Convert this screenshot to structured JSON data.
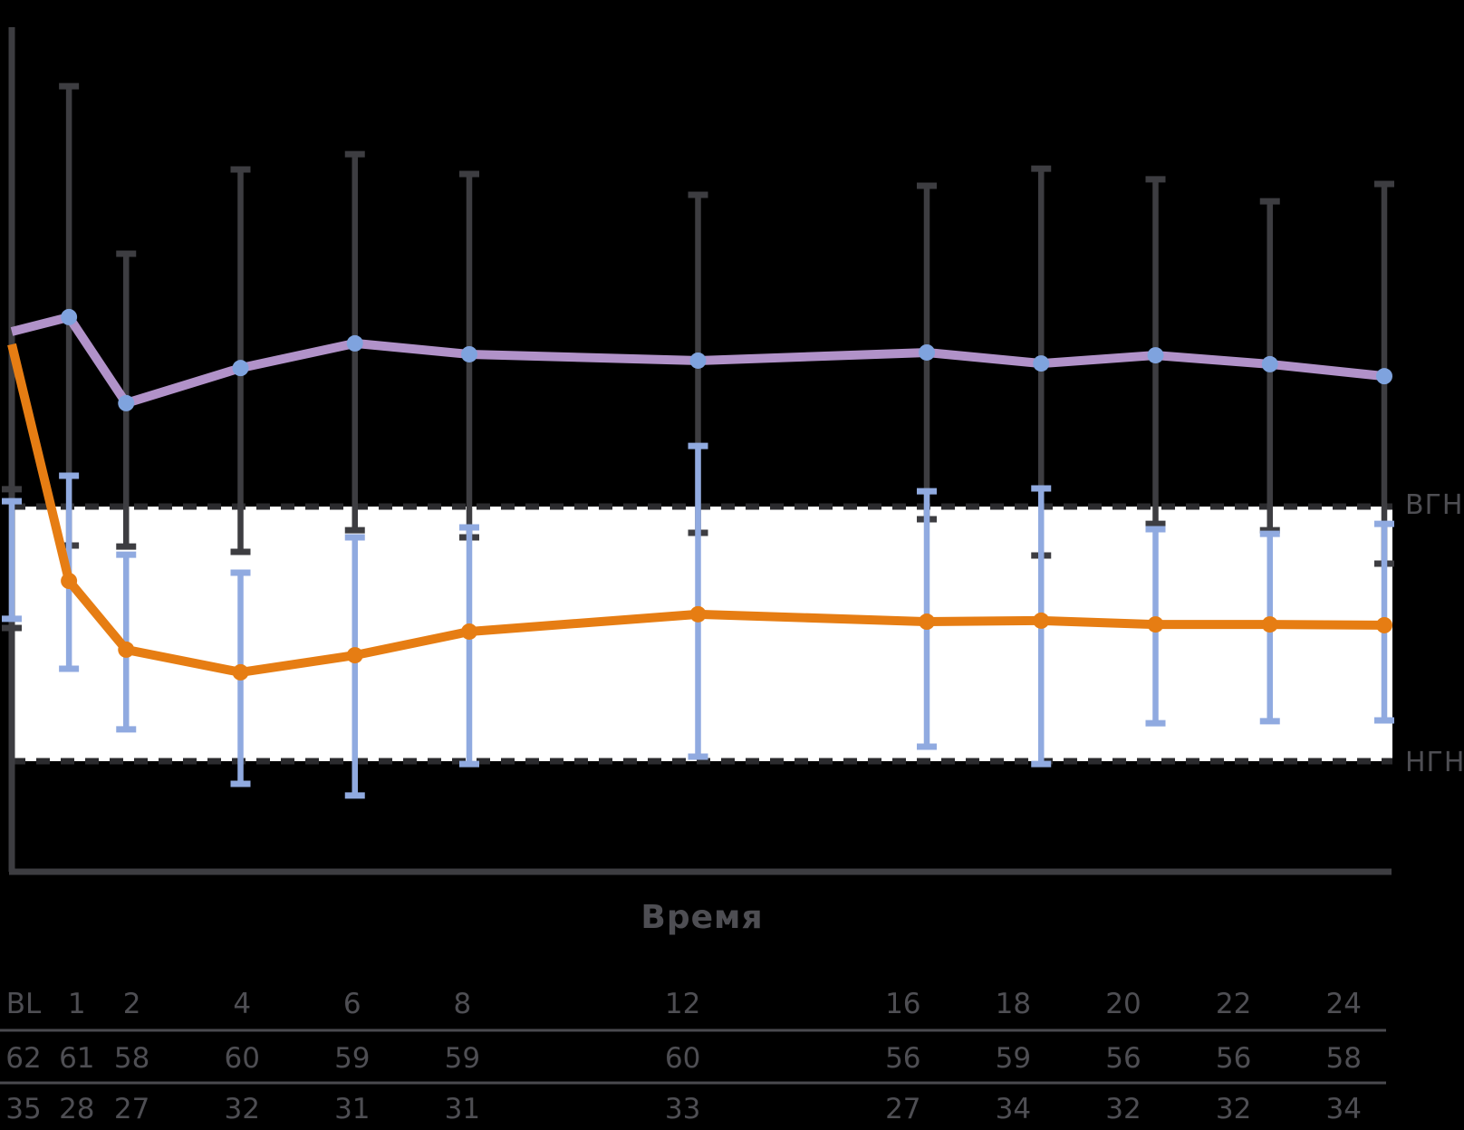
{
  "chart_data": {
    "type": "line",
    "title": "",
    "xlabel": "Время",
    "ylabel": "",
    "y_units": "normal-range fractions (НГН = 0, ВГН = 1)",
    "x_categories": [
      "BL",
      "1",
      "2",
      "4",
      "6",
      "8",
      "12",
      "16",
      "18",
      "20",
      "22",
      "24"
    ],
    "x_values": [
      0,
      1,
      2,
      4,
      6,
      8,
      12,
      16,
      18,
      20,
      22,
      24
    ],
    "band": {
      "upper_label": "ВГН",
      "lower_label": "НГН",
      "upper": 1.0,
      "lower": 0.0,
      "fill_color": "#ffffff",
      "dash_color": "#2b2b2e"
    },
    "grid": false,
    "legend": "none",
    "colors": {
      "background": "#000000",
      "axis": "#3d3d41",
      "text": "#4e4e53",
      "table_rule": "#4a4a4f"
    },
    "series": [
      {
        "name": "series_1",
        "line_color": "#b192c9",
        "marker_color": "#7fa3de",
        "error_color": "#3d3d41",
        "values": [
          1.687,
          1.744,
          1.406,
          1.544,
          1.641,
          1.598,
          1.573,
          1.605,
          1.562,
          1.594,
          1.559,
          1.512
        ],
        "err_top": [
          1.068,
          2.651,
          1.993,
          2.324,
          2.384,
          2.306,
          2.224,
          2.26,
          2.327,
          2.285,
          2.199,
          2.267
        ],
        "err_bottom": [
          0.523,
          0.847,
          0.843,
          0.822,
          0.907,
          0.879,
          0.897,
          0.95,
          0.808,
          0.932,
          0.907,
          0.776
        ],
        "n_row": [
          "62",
          "61",
          "58",
          "60",
          "59",
          "59",
          "60",
          "56",
          "59",
          "56",
          "56",
          "58"
        ]
      },
      {
        "name": "series_2",
        "line_color": "#e67d13",
        "marker_color": "#e67d13",
        "error_color": "#90aae0",
        "values": [
          1.637,
          0.708,
          0.438,
          0.349,
          0.416,
          0.509,
          0.577,
          0.548,
          0.552,
          0.537,
          0.537,
          0.534
        ],
        "err_top": [
          1.021,
          1.121,
          0.811,
          0.74,
          0.879,
          0.918,
          1.238,
          1.06,
          1.071,
          0.911,
          0.893,
          0.932
        ],
        "err_bottom": [
          0.559,
          0.363,
          0.125,
          -0.089,
          -0.135,
          -0.011,
          0.018,
          0.057,
          -0.011,
          0.149,
          0.157,
          0.16
        ],
        "n_row": [
          "35",
          "28",
          "27",
          "32",
          "31",
          "31",
          "33",
          "27",
          "34",
          "32",
          "32",
          "34"
        ]
      }
    ]
  }
}
